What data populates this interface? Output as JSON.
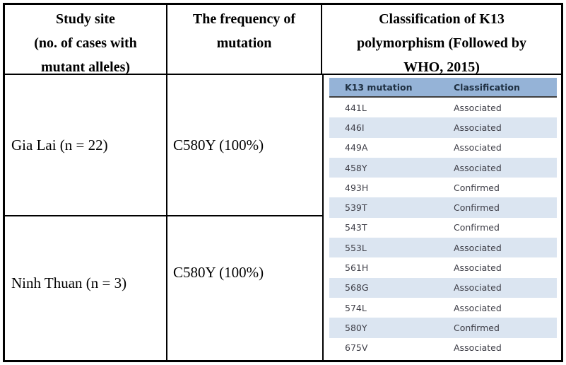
{
  "table": {
    "header": {
      "col1": "Study site\n(no. of cases with\nmutant alleles)",
      "col2": "The frequency of\nmutation",
      "col3": "Classification of K13\npolymorphism (Followed by\nWHO, 2015)"
    },
    "rows": [
      {
        "site": "Gia Lai (n = 22)",
        "frequency": "C580Y (100%)"
      },
      {
        "site": "Ninh Thuan (n = 3)",
        "frequency": "C580Y (100%)"
      }
    ]
  },
  "k13_table": {
    "header": {
      "mutation": "K13 mutation",
      "classification": "Classification"
    },
    "rows": [
      {
        "mutation": "441L",
        "classification": "Associated"
      },
      {
        "mutation": "446I",
        "classification": "Associated"
      },
      {
        "mutation": "449A",
        "classification": "Associated"
      },
      {
        "mutation": "458Y",
        "classification": "Associated"
      },
      {
        "mutation": "493H",
        "classification": "Confirmed"
      },
      {
        "mutation": "539T",
        "classification": "Confirmed"
      },
      {
        "mutation": "543T",
        "classification": "Confirmed"
      },
      {
        "mutation": "553L",
        "classification": "Associated"
      },
      {
        "mutation": "561H",
        "classification": "Associated"
      },
      {
        "mutation": "568G",
        "classification": "Associated"
      },
      {
        "mutation": "574L",
        "classification": "Associated"
      },
      {
        "mutation": "580Y",
        "classification": "Confirmed"
      },
      {
        "mutation": "675V",
        "classification": "Associated"
      }
    ]
  },
  "colors": {
    "k13_header_bg": "#95b3d7",
    "k13_stripe_bg": "#dbe5f1",
    "k13_header_text": "#1f3042",
    "k13_row_text": "#3d3d46"
  }
}
